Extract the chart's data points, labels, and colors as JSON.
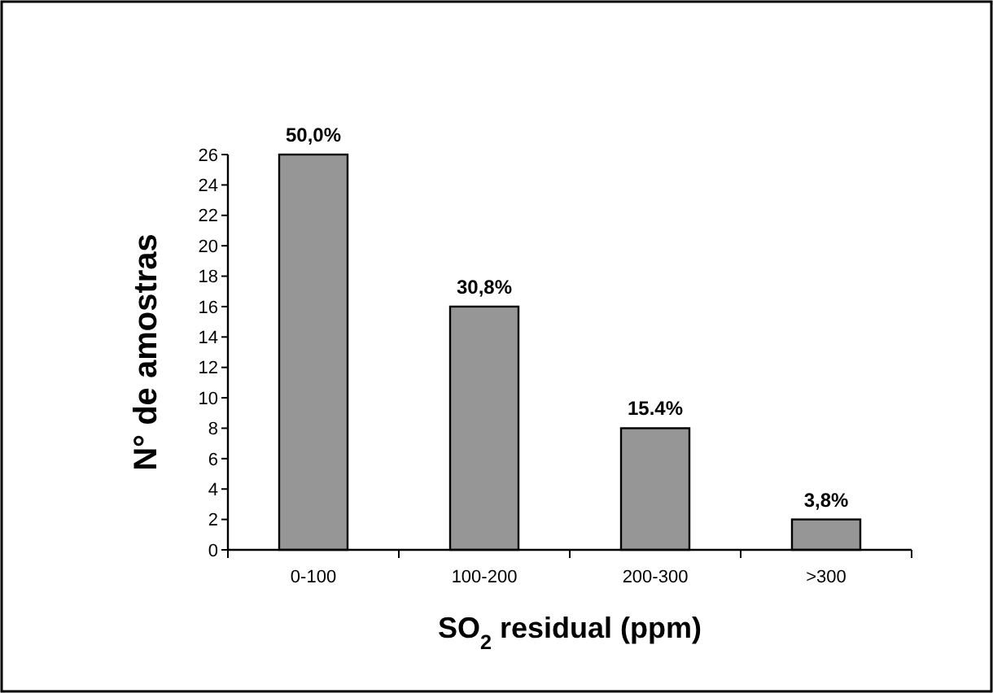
{
  "chart_data": {
    "type": "bar",
    "xlabel": "SO$_{2}$ residual (ppm)",
    "ylabel": "N° de amostras",
    "categories": [
      "0-100",
      "100-200",
      "200-300",
      ">300"
    ],
    "values": [
      26,
      16,
      8,
      2
    ],
    "color": "#969696",
    "annotations": [
      {
        "text": "50,0%",
        "x": "0-100",
        "y": 26
      },
      {
        "text": "30,8%",
        "x": "100-200",
        "y": 16
      },
      {
        "text": "15.4%",
        "x": "200-300",
        "y": 8
      },
      {
        "text": "3,8%",
        "x": ">300",
        "y": 2
      }
    ],
    "ylim": [
      0,
      26
    ],
    "yticks": [
      0,
      2,
      4,
      6,
      8,
      10,
      12,
      14,
      16,
      18,
      20,
      22,
      24,
      26
    ],
    "grid": false
  }
}
